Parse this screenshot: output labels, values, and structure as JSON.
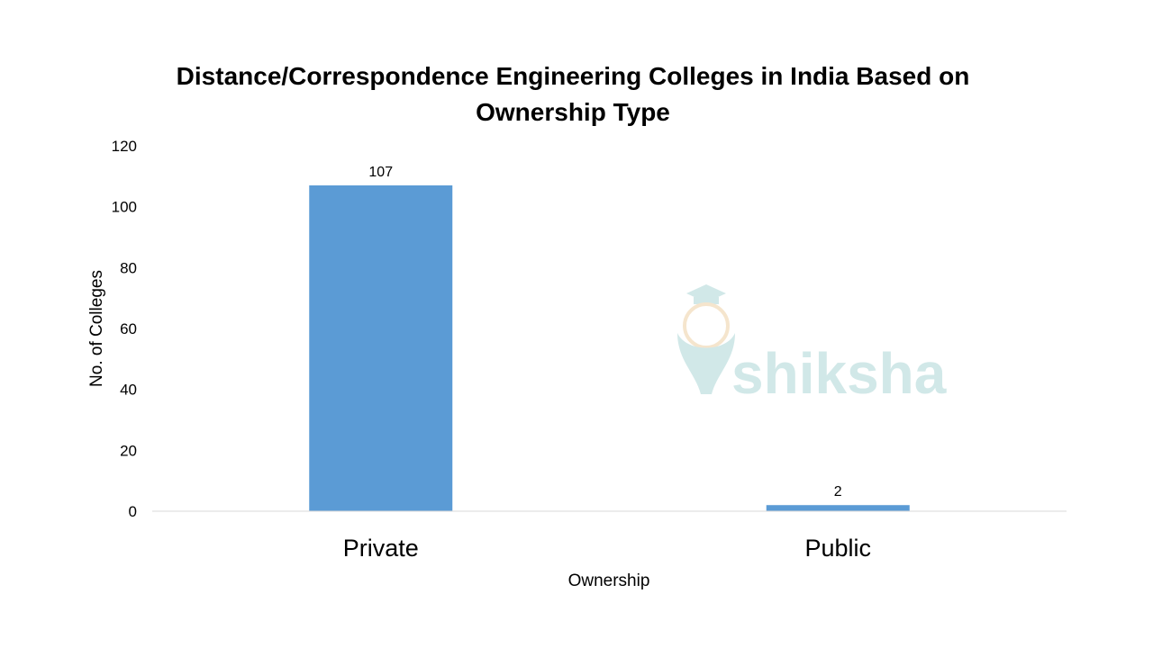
{
  "watermark": {
    "logo_text": "shiksha",
    "logo_colors": [
      "#cde6e6",
      "#f5e3c8"
    ]
  },
  "chart_data": {
    "type": "bar",
    "title_lines": [
      "Distance/Correspondence Engineering Colleges in India Based on",
      "Ownership Type"
    ],
    "categories": [
      "Private",
      "Public"
    ],
    "values": [
      107,
      2
    ],
    "data_labels": [
      "107",
      "2"
    ],
    "xlabel": "Ownership",
    "ylabel": "No. of Colleges",
    "ylim": [
      0,
      120
    ],
    "y_ticks": [
      "0",
      "20",
      "40",
      "60",
      "80",
      "100",
      "120"
    ],
    "grid": false,
    "legend": "none",
    "bar_color": "#5b9bd5",
    "axis_color": "#d9d9d9"
  }
}
